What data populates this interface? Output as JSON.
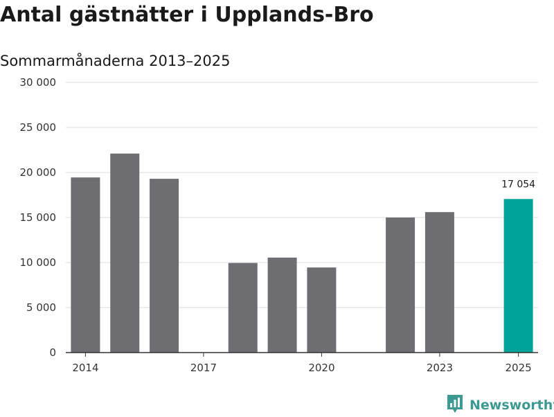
{
  "title": "Antal gästnätter i Upplands-Bro",
  "subtitle": "Sommarmånaderna 2013–2025",
  "brand": "Newsworthy",
  "colors": {
    "bar": "#6e6d72",
    "highlight": "#00a39a",
    "grid": "#dcdcdc",
    "axis": "#333333",
    "brand": "#3c9a92"
  },
  "chart_data": {
    "type": "bar",
    "title": "Antal gästnätter i Upplands-Bro",
    "subtitle": "Sommarmånaderna 2013–2025",
    "xlabel": "",
    "ylabel": "",
    "x": [
      2014,
      2015,
      2016,
      2017,
      2018,
      2019,
      2020,
      2021,
      2022,
      2023,
      2024,
      2025
    ],
    "values": [
      19450,
      22100,
      19300,
      null,
      9950,
      10550,
      9450,
      null,
      15000,
      15600,
      null,
      17054
    ],
    "highlight_x": 2025,
    "highlight_label": "17 054",
    "ylim": [
      0,
      30000
    ],
    "yticks": [
      0,
      5000,
      10000,
      15000,
      20000,
      25000,
      30000
    ],
    "ytick_labels": [
      "0",
      "5 000",
      "10 000",
      "15 000",
      "20 000",
      "25 000",
      "30 000"
    ],
    "xticks": [
      2014,
      2017,
      2020,
      2023,
      2025
    ],
    "xtick_labels": [
      "2014",
      "2017",
      "2020",
      "2023",
      "2025"
    ],
    "grid": true,
    "legend": "none"
  }
}
